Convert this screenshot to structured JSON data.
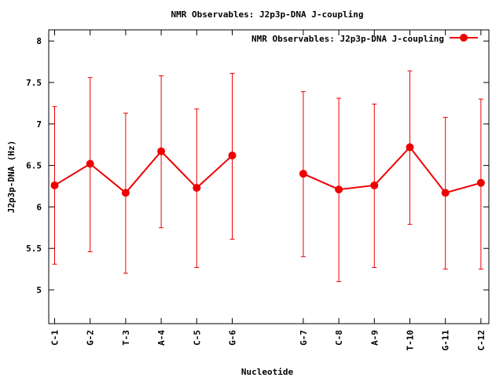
{
  "chart_data": {
    "type": "line",
    "title": "NMR Observables: J2p3p-DNA J-coupling",
    "xlabel": "Nucleotide",
    "ylabel": "J2p3p-DNA (Hz)",
    "ylim": [
      4.5,
      8.15
    ],
    "yticks": [
      5,
      5.5,
      6,
      6.5,
      7,
      7.5,
      8
    ],
    "ytick_labels": [
      "5",
      "5.5",
      "6",
      "6.5",
      "7",
      "7.5",
      "8"
    ],
    "legend_position": "top-right",
    "grid": false,
    "series": [
      {
        "name": "NMR Observables: J2p3p-DNA J-coupling",
        "color": "#ee0000",
        "points": [
          {
            "label": "C-1",
            "y": 6.26,
            "err_low": 5.31,
            "err_high": 7.21
          },
          {
            "label": "G-2",
            "y": 6.52,
            "err_low": 5.46,
            "err_high": 7.56
          },
          {
            "label": "T-3",
            "y": 6.17,
            "err_low": 5.2,
            "err_high": 7.13
          },
          {
            "label": "A-4",
            "y": 6.67,
            "err_low": 5.75,
            "err_high": 7.58
          },
          {
            "label": "C-5",
            "y": 6.23,
            "err_low": 5.27,
            "err_high": 7.18
          },
          {
            "label": "G-6",
            "y": 6.62,
            "err_low": 5.61,
            "err_high": 7.61
          },
          {
            "label": "G-7",
            "y": 6.4,
            "err_low": 5.4,
            "err_high": 7.39
          },
          {
            "label": "C-8",
            "y": 6.21,
            "err_low": 5.1,
            "err_high": 7.31
          },
          {
            "label": "A-9",
            "y": 6.26,
            "err_low": 5.27,
            "err_high": 7.24
          },
          {
            "label": "T-10",
            "y": 6.72,
            "err_low": 5.79,
            "err_high": 7.64
          },
          {
            "label": "G-11",
            "y": 6.17,
            "err_low": 5.25,
            "err_high": 7.08
          },
          {
            "label": "C-12",
            "y": 6.29,
            "err_low": 5.25,
            "err_high": 7.3
          }
        ]
      }
    ]
  }
}
